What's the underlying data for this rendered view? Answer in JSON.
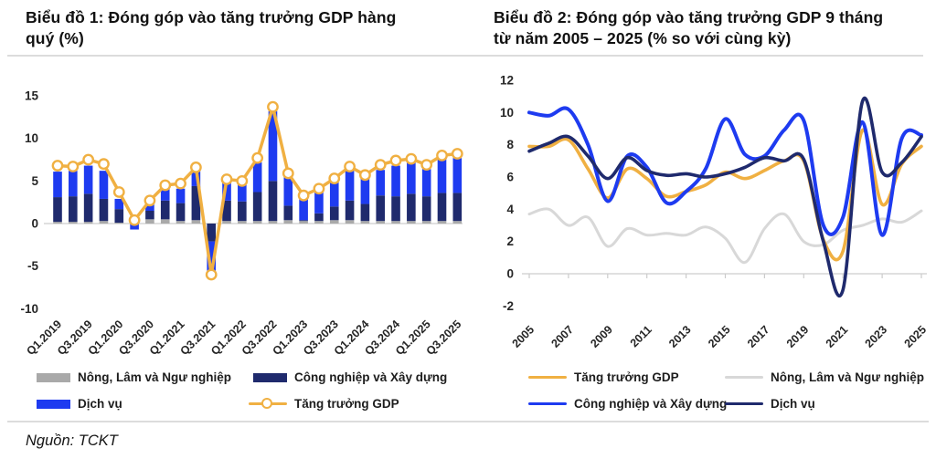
{
  "source": {
    "text": "Nguồn: TCKT"
  },
  "chart_data": [
    {
      "type": "bar",
      "subtype": "stacked-bars-with-line-overlay",
      "title": "Biểu đồ 1: Đóng góp vào tăng trưởng GDP hàng quý (%)",
      "categories": [
        "Q1.2019",
        "Q2.2019",
        "Q3.2019",
        "Q4.2019",
        "Q1.2020",
        "Q2.2020",
        "Q3.2020",
        "Q4.2020",
        "Q1.2021",
        "Q2.2021",
        "Q3.2021",
        "Q4.2021",
        "Q1.2022",
        "Q2.2022",
        "Q3.2022",
        "Q4.2022",
        "Q1.2023",
        "Q2.2023",
        "Q3.2023",
        "Q4.2023",
        "Q1.2024",
        "Q2.2024",
        "Q3.2024",
        "Q4.2024",
        "Q1.2025",
        "Q2.2025",
        "Q3.2025"
      ],
      "x_tick_labels": [
        "Q1.2019",
        "Q3.2019",
        "Q1.2020",
        "Q3.2020",
        "Q1.2021",
        "Q3.2021",
        "Q1.2022",
        "Q3.2022",
        "Q1.2023",
        "Q3.2023",
        "Q1.2024",
        "Q3.2024",
        "Q1.2025",
        "Q3.2025"
      ],
      "ylim": [
        -10,
        15
      ],
      "yticks": [
        15,
        10,
        5,
        0,
        -5,
        -10
      ],
      "grid": false,
      "legend_position": "bottom",
      "series": [
        {
          "name": "Nông, Lâm và Ngư nghiệp",
          "type": "bar",
          "color": "#A9A9A9",
          "values": [
            0.2,
            0.2,
            0.2,
            0.3,
            0.1,
            0.2,
            0.5,
            0.5,
            0.3,
            0.4,
            0.0,
            0.3,
            0.3,
            0.3,
            0.3,
            0.4,
            0.3,
            0.3,
            0.4,
            0.4,
            0.3,
            0.3,
            0.3,
            0.3,
            0.3,
            0.3,
            0.3
          ]
        },
        {
          "name": "Công nghiệp và Xây dựng",
          "type": "bar",
          "color": "#1F2A6D",
          "values": [
            2.9,
            3.0,
            3.3,
            2.6,
            1.6,
            0.3,
            1.0,
            2.2,
            2.1,
            4.0,
            -2.1,
            2.4,
            2.3,
            3.4,
            4.7,
            1.7,
            0.1,
            0.9,
            1.6,
            2.3,
            2.0,
            3.0,
            2.9,
            3.2,
            2.9,
            3.3,
            3.3
          ]
        },
        {
          "name": "Dịch vụ",
          "type": "bar",
          "color": "#1E3BF0",
          "values": [
            3.0,
            3.0,
            3.3,
            3.3,
            1.2,
            -0.7,
            0.8,
            1.6,
            1.7,
            1.9,
            -3.9,
            2.3,
            2.1,
            3.5,
            8.2,
            3.6,
            2.7,
            2.7,
            2.9,
            3.5,
            3.0,
            3.0,
            3.6,
            4.0,
            3.2,
            4.0,
            4.1
          ]
        },
        {
          "name": "Tăng trưởng GDP",
          "type": "line",
          "marker": "circle",
          "color": "#F0B042",
          "values": [
            6.8,
            6.7,
            7.5,
            7.0,
            3.7,
            0.4,
            2.7,
            4.5,
            4.7,
            6.6,
            -6.0,
            5.2,
            5.0,
            7.7,
            13.7,
            5.9,
            3.3,
            4.1,
            5.3,
            6.7,
            5.7,
            6.9,
            7.4,
            7.6,
            6.9,
            8.0,
            8.2
          ]
        }
      ]
    },
    {
      "type": "line",
      "subtype": "smooth-multi-line",
      "title": "Biểu đồ 2: Đóng góp vào tăng trưởng GDP 9 tháng từ năm 2005 – 2025 (% so với cùng kỳ)",
      "x": [
        2005,
        2006,
        2007,
        2008,
        2009,
        2010,
        2011,
        2012,
        2013,
        2014,
        2015,
        2016,
        2017,
        2018,
        2019,
        2020,
        2021,
        2022,
        2023,
        2024,
        2025
      ],
      "x_tick_labels": [
        "2005",
        "2007",
        "2009",
        "2011",
        "2013",
        "2015",
        "2017",
        "2019",
        "2021",
        "2023",
        "2025"
      ],
      "ylim": [
        -2,
        12
      ],
      "yticks": [
        12,
        10,
        8,
        6,
        4,
        2,
        0,
        -2
      ],
      "grid": false,
      "legend_position": "bottom",
      "series": [
        {
          "name": "Tăng trưởng GDP",
          "color": "#F0B042",
          "values": [
            7.9,
            7.9,
            8.3,
            6.5,
            4.7,
            6.5,
            5.9,
            4.8,
            5.1,
            5.5,
            6.3,
            5.9,
            6.4,
            7.0,
            7.0,
            2.1,
            1.4,
            8.9,
            4.3,
            6.8,
            7.9
          ]
        },
        {
          "name": "Nông, Lâm và Ngư nghiệp",
          "color": "#D8D8D8",
          "values": [
            3.7,
            4.0,
            3.0,
            3.5,
            1.7,
            2.8,
            2.4,
            2.5,
            2.4,
            2.9,
            2.2,
            0.7,
            2.8,
            3.7,
            2.0,
            1.8,
            2.7,
            3.0,
            3.4,
            3.2,
            3.9
          ]
        },
        {
          "name": "Công nghiệp và Xây dựng",
          "color": "#1E3BF0",
          "values": [
            10.0,
            9.8,
            10.2,
            8.0,
            4.5,
            7.3,
            6.6,
            4.4,
            5.1,
            6.5,
            9.6,
            7.4,
            7.3,
            8.9,
            9.5,
            3.0,
            3.5,
            9.4,
            2.4,
            8.4,
            8.6
          ]
        },
        {
          "name": "Dịch vụ",
          "color": "#1F2A6D",
          "values": [
            7.6,
            8.1,
            8.5,
            7.3,
            5.9,
            7.2,
            6.4,
            6.1,
            6.2,
            6.0,
            6.2,
            6.6,
            7.2,
            7.0,
            7.1,
            2.0,
            -1.0,
            10.7,
            6.3,
            6.9,
            8.5
          ]
        }
      ]
    }
  ]
}
